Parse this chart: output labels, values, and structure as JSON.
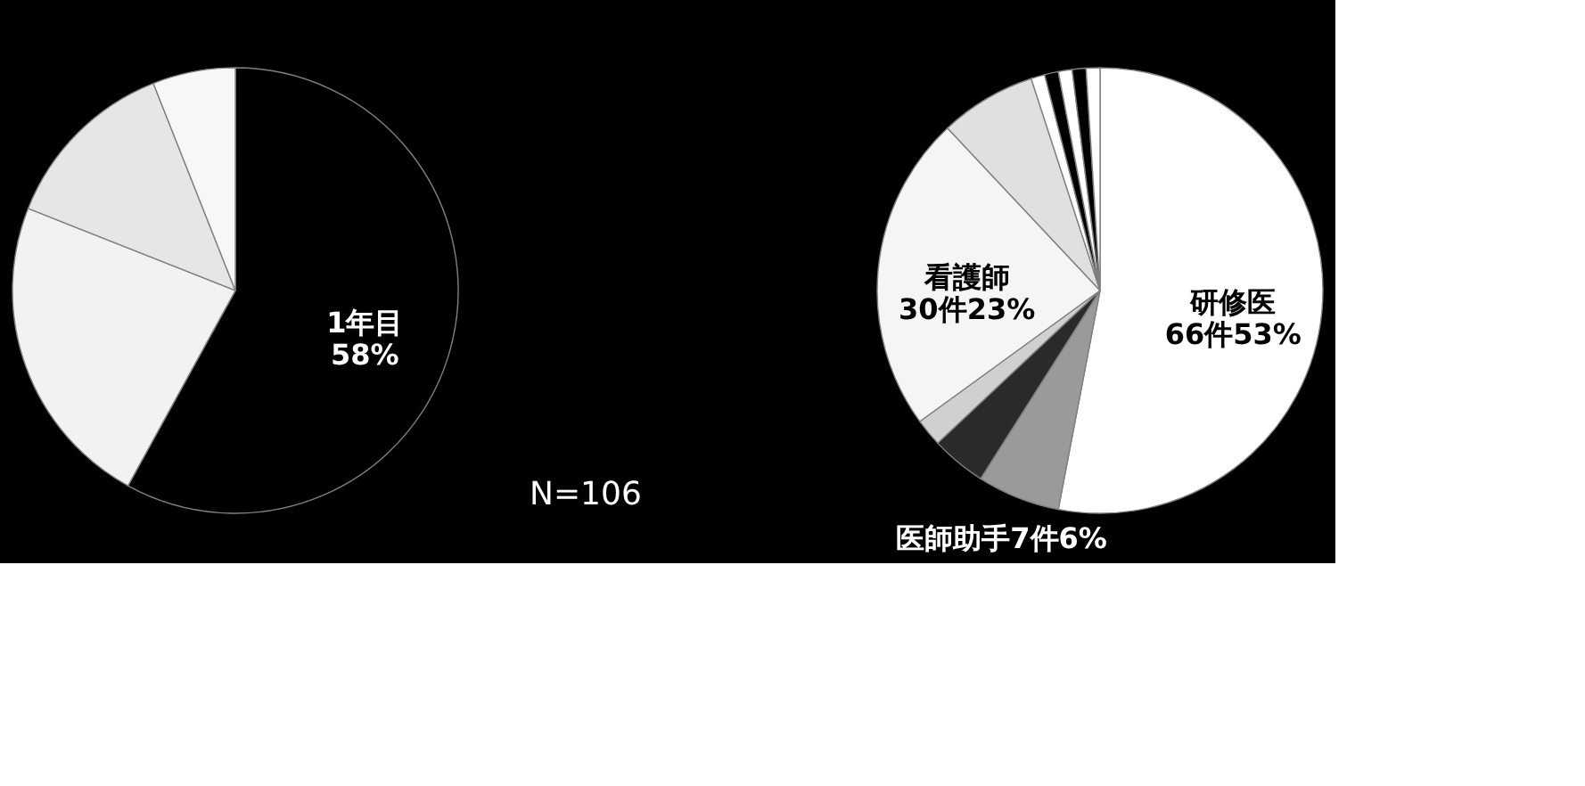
{
  "chart_data": [
    {
      "type": "pie",
      "categories": [
        "1年目",
        null,
        null,
        null
      ],
      "values": [
        58,
        23,
        13,
        6
      ],
      "value_labels": [
        "58%",
        null,
        null,
        null
      ],
      "colors": [
        "#000000",
        "#f2f2f2",
        "#e6e6e6",
        "#f7f7f7"
      ],
      "annotations": [
        "N=106"
      ]
    },
    {
      "type": "pie",
      "categories": [
        "研修医",
        "医師助手",
        null,
        null,
        "看護師",
        null,
        null,
        null,
        null,
        null,
        null
      ],
      "values": [
        53,
        6,
        4,
        2,
        23,
        7,
        1,
        1,
        1,
        1,
        1
      ],
      "value_labels": [
        "66件53%",
        "7件6%",
        null,
        null,
        "30件23%",
        null,
        null,
        null,
        null,
        null,
        null
      ],
      "colors": [
        "#ffffff",
        "#9a9a9a",
        "#2a2a2a",
        "#d0d0d0",
        "#f5f5f5",
        "#e0e0e0",
        "#ffffff",
        "#000000",
        "#ffffff",
        "#000000",
        "#ffffff"
      ]
    }
  ]
}
